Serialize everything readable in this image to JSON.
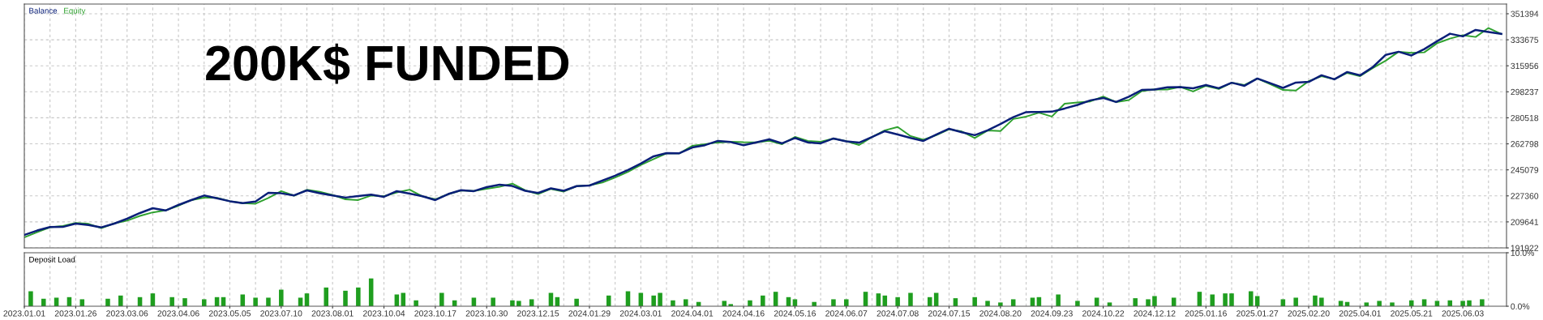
{
  "chart_data": [
    {
      "type": "line",
      "annotations": [
        "200K$ FUNDED"
      ],
      "legend": "top left",
      "grid": true,
      "tick_labels": "y",
      "ylim": [
        191922,
        358000
      ],
      "yticks": [
        191922,
        209641,
        227360,
        245079,
        262798,
        280518,
        298237,
        315956,
        333675,
        351394
      ],
      "categories": [
        null,
        null,
        null,
        null,
        null,
        null,
        null,
        null,
        null,
        null,
        null,
        null,
        null,
        null,
        null,
        null,
        null,
        null,
        null,
        null,
        null,
        null,
        null,
        null,
        null,
        null,
        null,
        null,
        null,
        null,
        null,
        null,
        null,
        null,
        null,
        null,
        null,
        null,
        null,
        null,
        null,
        null,
        null,
        null,
        null,
        null,
        null,
        null,
        null,
        null,
        null,
        null,
        null,
        null,
        null,
        null,
        null,
        null,
        null,
        null,
        null,
        null,
        null,
        null,
        null,
        null,
        null,
        null,
        null,
        null,
        null,
        null,
        null,
        null,
        null,
        null,
        null,
        null,
        null,
        null,
        null,
        null,
        null,
        null,
        null,
        null,
        null,
        null,
        null,
        null,
        null,
        null,
        null,
        null,
        null,
        null,
        null,
        null,
        null,
        null,
        null,
        null,
        null,
        null,
        null,
        null,
        null,
        null,
        null,
        null,
        null,
        null,
        null,
        null,
        null,
        null
      ],
      "series": [
        {
          "name": "Balance",
          "color": "#0a1f78",
          "values": [
            200750,
            203740,
            206100,
            206200,
            208480,
            207500,
            205900,
            208480,
            211790,
            215660,
            218970,
            217400,
            221180,
            224490,
            227600,
            225700,
            223700,
            222450,
            223500,
            229460,
            229100,
            227700,
            231110,
            229200,
            227600,
            226200,
            227200,
            228200,
            226700,
            230560,
            228900,
            227100,
            224490,
            228600,
            231250,
            230600,
            233320,
            234980,
            234100,
            230800,
            229300,
            232500,
            230800,
            234000,
            234400,
            237740,
            241100,
            245000,
            249330,
            254300,
            256510,
            256400,
            260300,
            261900,
            264800,
            264000,
            261900,
            263800,
            265890,
            263130,
            266800,
            263800,
            263130,
            266440,
            264500,
            263600,
            267400,
            271410,
            269200,
            266800,
            264790,
            269100,
            273070,
            270700,
            268700,
            272000,
            276300,
            281000,
            284400,
            284500,
            284700,
            286870,
            289300,
            292400,
            294040,
            291280,
            294900,
            299500,
            299800,
            301300,
            301400,
            300600,
            302870,
            300670,
            304400,
            302320,
            307290,
            304100,
            300900,
            304530,
            305000,
            309500,
            306740,
            311710,
            309400,
            315100,
            323400,
            325510,
            323000,
            327300,
            332680,
            337800,
            335990,
            340400,
            339000,
            337650
          ]
        },
        {
          "name": "Equity",
          "color": "#2ea12e",
          "values": [
            199100,
            202600,
            206000,
            206900,
            208900,
            208300,
            205400,
            208600,
            210500,
            213700,
            216100,
            217500,
            220630,
            224490,
            226100,
            226000,
            223700,
            222400,
            222000,
            225900,
            230600,
            227500,
            231500,
            230100,
            228000,
            225000,
            224500,
            227600,
            227100,
            229700,
            231600,
            227000,
            225000,
            228500,
            231100,
            230700,
            232200,
            233500,
            235700,
            231200,
            228600,
            232100,
            230300,
            234000,
            234500,
            236400,
            239900,
            243700,
            248400,
            252400,
            256300,
            256300,
            261400,
            262600,
            263700,
            264200,
            263900,
            263800,
            264900,
            262580,
            267500,
            264790,
            264200,
            266440,
            264600,
            262000,
            267400,
            272000,
            274300,
            268100,
            265600,
            268650,
            272700,
            271200,
            266800,
            271900,
            271500,
            279700,
            281350,
            284000,
            281350,
            290100,
            291000,
            291700,
            295000,
            291280,
            292600,
            298700,
            299900,
            299800,
            301600,
            298500,
            302300,
            300120,
            304400,
            302900,
            307290,
            303500,
            299500,
            299100,
            305500,
            308800,
            306800,
            311100,
            308900,
            314500,
            319430,
            325510,
            324800,
            325100,
            331300,
            334500,
            336800,
            335600,
            341700,
            337650
          ]
        }
      ]
    },
    {
      "type": "bar",
      "title": "Deposit Load",
      "grid": "x",
      "color": "#1f9e1f",
      "ylim": [
        0,
        10
      ],
      "yticks": [
        {
          "value": 0,
          "label": "0.0%"
        },
        {
          "value": 10,
          "label": "10.0%"
        }
      ],
      "categories": [
        "2023.01.01",
        null,
        null,
        null,
        null,
        null,
        null,
        null,
        "2023.01.26",
        null,
        null,
        null,
        null,
        null,
        null,
        null,
        "2023.03.06",
        null,
        null,
        null,
        null,
        null,
        null,
        null,
        "2023.04.06",
        null,
        null,
        null,
        null,
        null,
        null,
        null,
        "2023.05.05",
        null,
        null,
        null,
        null,
        null,
        null,
        null,
        "2023.07.10",
        null,
        null,
        null,
        null,
        null,
        null,
        null,
        "2023.08.01",
        null,
        null,
        null,
        null,
        null,
        null,
        null,
        "2023.10.04",
        null,
        null,
        null,
        null,
        null,
        null,
        null,
        "2023.10.17",
        null,
        null,
        null,
        null,
        null,
        null,
        null,
        "2023.10.30",
        null,
        null,
        null,
        null,
        null,
        null,
        null,
        "2023.12.15",
        null,
        null,
        null,
        null,
        null,
        null,
        null,
        "2024.01.29",
        null,
        null,
        null,
        null,
        null,
        null,
        null,
        "2024.03.01",
        null,
        null,
        null,
        null,
        null,
        null,
        null,
        "2024.04.01",
        null,
        null,
        null,
        null,
        null,
        null,
        null,
        "2024.04.16",
        null,
        null,
        null,
        null,
        null,
        null,
        null,
        "2024.05.16",
        null,
        null,
        null,
        null,
        null,
        null,
        null,
        "2024.06.07",
        null,
        null,
        null,
        null,
        null,
        null,
        null,
        "2024.07.08",
        null,
        null,
        null,
        null,
        null,
        null,
        null,
        "2024.07.15",
        null,
        null,
        null,
        null,
        null,
        null,
        null,
        "2024.08.20",
        null,
        null,
        null,
        null,
        null,
        null,
        null,
        "2024.09.23",
        null,
        null,
        null,
        null,
        null,
        null,
        null,
        "2024.10.22",
        null,
        null,
        null,
        null,
        null,
        null,
        null,
        "2024.12.12",
        null,
        null,
        null,
        null,
        null,
        null,
        null,
        "2025.01.16",
        null,
        null,
        null,
        null,
        null,
        null,
        null,
        "2025.01.27",
        null,
        null,
        null,
        null,
        null,
        null,
        null,
        "2025.02.20",
        null,
        null,
        null,
        null,
        null,
        null,
        null,
        "2025.04.01",
        null,
        null,
        null,
        null,
        null,
        null,
        null,
        "2025.05.21",
        null,
        null,
        null,
        null,
        null,
        null,
        null,
        "2025.06.03",
        null,
        null,
        null,
        null,
        null,
        null
      ],
      "values": [
        null,
        2.8,
        null,
        1.4,
        null,
        1.6,
        null,
        1.7,
        null,
        1.3,
        null,
        null,
        null,
        1.4,
        null,
        2.0,
        null,
        null,
        1.7,
        null,
        2.4,
        null,
        null,
        1.7,
        null,
        1.5,
        null,
        null,
        1.3,
        null,
        1.7,
        1.7,
        null,
        null,
        2.2,
        null,
        1.6,
        null,
        1.6,
        null,
        3.1,
        null,
        null,
        1.6,
        2.4,
        null,
        null,
        3.5,
        null,
        null,
        2.9,
        null,
        3.5,
        null,
        5.2,
        null,
        null,
        null,
        2.2,
        2.5,
        null,
        1.1,
        null,
        null,
        null,
        2.5,
        null,
        1.1,
        null,
        null,
        1.6,
        null,
        null,
        1.6,
        null,
        null,
        1.1,
        1.0,
        null,
        1.3,
        null,
        null,
        2.5,
        1.7,
        null,
        null,
        1.4,
        null,
        null,
        null,
        null,
        2.0,
        null,
        null,
        2.8,
        null,
        2.5,
        null,
        2.0,
        2.5,
        null,
        1.1,
        null,
        1.3,
        null,
        0.8,
        null,
        null,
        null,
        1.0,
        0.4,
        null,
        null,
        1.1,
        null,
        2.0,
        null,
        2.7,
        null,
        1.7,
        1.3,
        null,
        null,
        0.8,
        null,
        null,
        1.3,
        null,
        1.3,
        null,
        null,
        2.7,
        null,
        2.4,
        2.0,
        null,
        1.7,
        null,
        2.5,
        null,
        null,
        1.7,
        2.5,
        null,
        null,
        1.5,
        null,
        null,
        1.7,
        null,
        1.0,
        null,
        0.7,
        null,
        1.3,
        null,
        null,
        1.6,
        1.7,
        null,
        null,
        2.2,
        null,
        null,
        1.0,
        null,
        null,
        1.6,
        null,
        0.7,
        null,
        null,
        null,
        1.5,
        null,
        1.3,
        1.9,
        null,
        null,
        1.6,
        null,
        null,
        null,
        2.7,
        null,
        2.2,
        null,
        2.4,
        2.4,
        null,
        null,
        2.8,
        1.9,
        null,
        null,
        null,
        1.3,
        null,
        1.6,
        null,
        null,
        2.0,
        1.6,
        null,
        null,
        1.0,
        0.8,
        null,
        null,
        0.7,
        null,
        1.0,
        null,
        0.7,
        null,
        null,
        1.1,
        null,
        1.3,
        null,
        1.0,
        null,
        1.1,
        null,
        1.0,
        1.1,
        null,
        1.3,
        null,
        null,
        null
      ]
    }
  ]
}
